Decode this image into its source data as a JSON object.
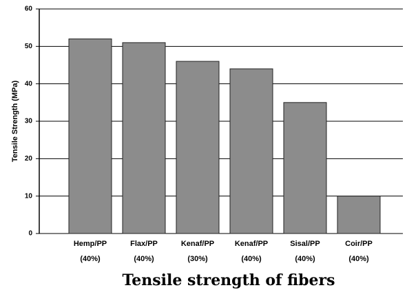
{
  "chart_data": {
    "type": "bar",
    "title": "Tensile strength of fibers",
    "y_label": "Tensile Strength (MPa)",
    "categories": [
      "Hemp/PP (40%)",
      "Flax/PP (40%)",
      "Kenaf/PP (30%)",
      "Kenaf/PP (40%)",
      "Sisal/PP (40%)",
      "Coir/PP (40%)"
    ],
    "values": [
      52,
      51,
      46,
      44,
      35,
      10
    ],
    "color": "#8c8c8c",
    "ylim": [
      0,
      60
    ],
    "yticks": [
      0,
      10,
      20,
      30,
      40,
      50,
      60
    ],
    "grid": true
  }
}
